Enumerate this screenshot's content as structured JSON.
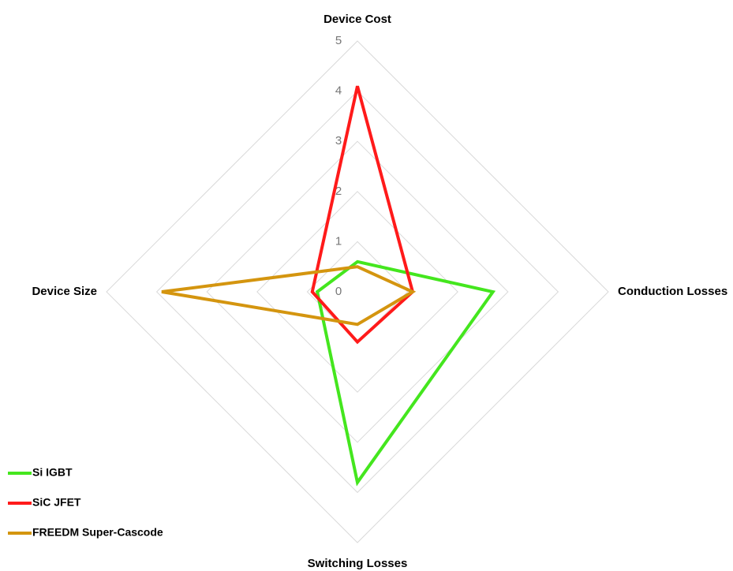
{
  "chart_data": {
    "type": "radar",
    "categories": [
      "Device Cost",
      "Conduction Losses",
      "Switching Losses",
      "Device Size"
    ],
    "series": [
      {
        "name": "Si IGBT",
        "color": "#44e61e",
        "values": [
          0.6,
          2.7,
          3.8,
          0.8
        ]
      },
      {
        "name": "SiC JFET",
        "color": "#ff1a1a",
        "values": [
          4.1,
          1.1,
          1.0,
          0.9
        ]
      },
      {
        "name": "FREEDM Super-Cascode",
        "color": "#d4950f",
        "values": [
          0.5,
          1.1,
          0.65,
          3.9
        ]
      }
    ],
    "rlim": [
      0,
      5
    ],
    "rticks": [
      0,
      1,
      2,
      3,
      4,
      5
    ],
    "grid": true,
    "legend": "bottom-left"
  }
}
